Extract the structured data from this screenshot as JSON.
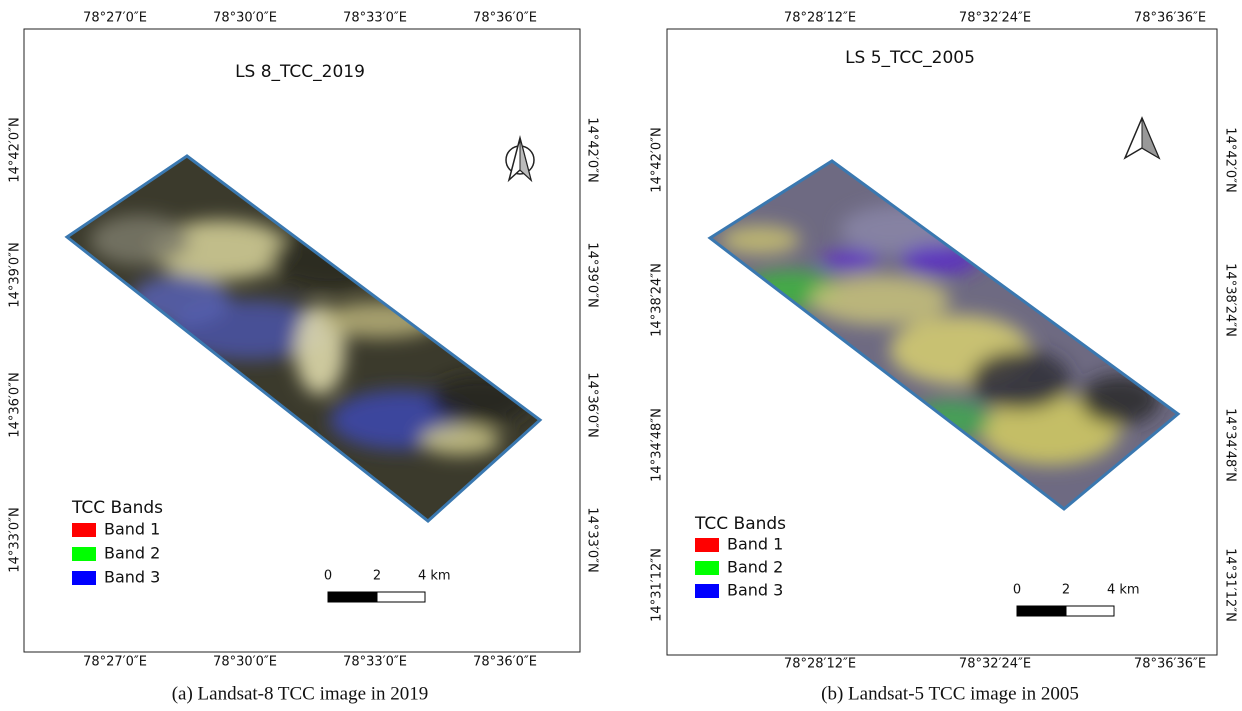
{
  "panels": [
    {
      "title": "LS 8_TCC_2019",
      "lon_labels": [
        "78°27′0″E",
        "78°30′0″E",
        "78°33′0″E",
        "78°36′0″E"
      ],
      "lat_labels": [
        "14°42′0″N",
        "14°39′0″N",
        "14°36′0″N",
        "14°33′0″N"
      ],
      "legend": {
        "title": "TCC Bands",
        "items": [
          {
            "label": "Band 1",
            "color": "#ff0000"
          },
          {
            "label": "Band 2",
            "color": "#00ff00"
          },
          {
            "label": "Band 3",
            "color": "#0000ff"
          }
        ]
      },
      "scale": {
        "labels": [
          "0",
          "2",
          "4 km"
        ]
      },
      "caption": "(a) Landsat-8 TCC image in 2019"
    },
    {
      "title": "LS 5_TCC_2005",
      "lon_labels": [
        "78°28′12″E",
        "78°32′24″E",
        "78°36′36″E"
      ],
      "lat_labels": [
        "14°42′0″N",
        "14°38′24″N",
        "14°34′48″N",
        "14°31′12″N"
      ],
      "legend": {
        "title": "TCC Bands",
        "items": [
          {
            "label": "Band 1",
            "color": "#ff0000"
          },
          {
            "label": "Band 2",
            "color": "#00ff00"
          },
          {
            "label": "Band 3",
            "color": "#0000ff"
          }
        ]
      },
      "scale": {
        "labels": [
          "0",
          "2",
          "4 km"
        ]
      },
      "caption": "(b) Landsat-5 TCC image in 2005"
    }
  ]
}
